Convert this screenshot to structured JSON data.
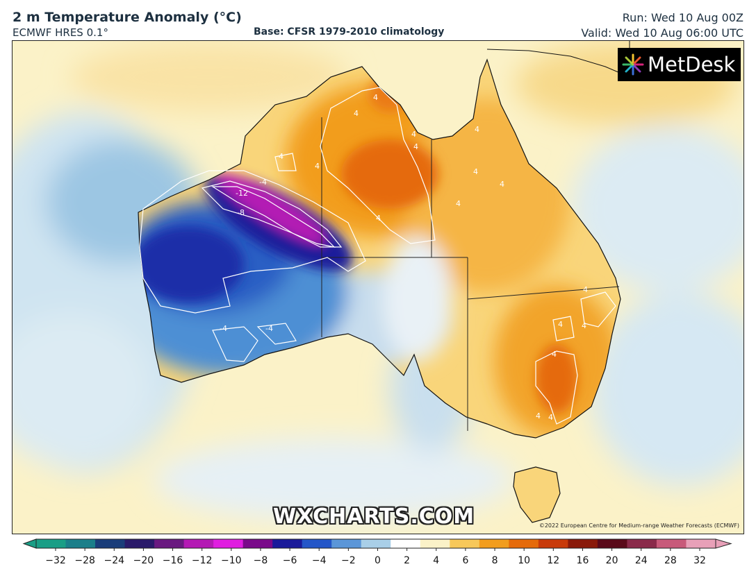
{
  "header": {
    "title": "2 m Temperature Anomaly (°C)",
    "model": "ECMWF HRES 0.1°",
    "base": "Base: CFSR 1979-2010 climatology",
    "run": "Run: Wed 10 Aug 00Z",
    "valid": "Valid: Wed 10 Aug 06:00 UTC"
  },
  "branding": {
    "logo": "MetDesk",
    "watermark": "WXCHARTS.COM",
    "credit": "©2022 European Centre for Medium-range Weather Forecasts (ECMWF)"
  },
  "contour_labels": [
    "-12",
    "-8",
    "-4",
    "-4",
    "-4",
    "4",
    "4",
    "4",
    "4",
    "4",
    "4",
    "4",
    "4",
    "4",
    "4",
    "4",
    "4",
    "4",
    "4",
    "4",
    "4",
    "4"
  ],
  "colorbar": {
    "ticks": [
      "−32",
      "−28",
      "−24",
      "−20",
      "−16",
      "−12",
      "−10",
      "−8",
      "−6",
      "−4",
      "−2",
      "0",
      "2",
      "4",
      "6",
      "8",
      "10",
      "12",
      "16",
      "20",
      "24",
      "28",
      "32"
    ],
    "colors": [
      "#1a9e86",
      "#1b7f8a",
      "#1a3d7a",
      "#2a1a6a",
      "#6a1a80",
      "#b41ab4",
      "#e01ee0",
      "#7a0a8a",
      "#1a1a9a",
      "#2456c8",
      "#5b96d8",
      "#a9cfe8",
      "#ffffff",
      "#fbf2c8",
      "#f7c85a",
      "#f29d1e",
      "#e56a0a",
      "#c83a0a",
      "#8a1a0a",
      "#5a0a1a",
      "#8a2a4a",
      "#c85a7a",
      "#e8a0b8"
    ]
  },
  "colors": {
    "cold_strong": "#1a1a9a",
    "cold_extreme": "#c81ec8",
    "warm": "#f29d1e",
    "neutral": "#ffffff"
  }
}
